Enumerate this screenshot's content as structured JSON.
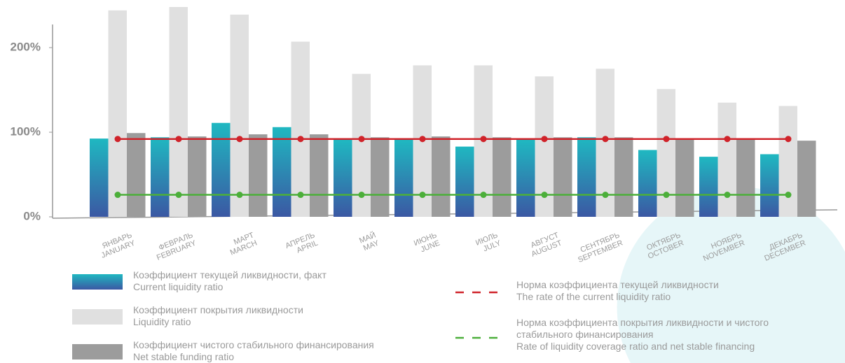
{
  "chart_data": {
    "type": "bar",
    "categories": [
      "JANUARY",
      "FEBRUARY",
      "MARCH",
      "APRIL",
      "MAY",
      "JUNE",
      "JULY",
      "AUGUST",
      "SEPTEMBER",
      "OCTOBER",
      "NOVEMBER",
      "DECEMBER"
    ],
    "categories_ru": [
      "ЯНВАРЬ",
      "ФЕВРАЛЬ",
      "МАРТ",
      "АПРЕЛЬ",
      "МАЙ",
      "ИЮНЬ",
      "ИЮЛЬ",
      "АВГУСТ",
      "СЕНТЯБРЬ",
      "ОКТЯБРЬ",
      "НОЯБРЬ",
      "ДЕКАБРЬ"
    ],
    "ylim": [
      0,
      248
    ],
    "yticks": [
      {
        "value": 0,
        "label": "0%"
      },
      {
        "value": 100,
        "label": "100%"
      },
      {
        "value": 200,
        "label": "200%"
      }
    ],
    "series": [
      {
        "name": "Коэффициент текущей ликвидности, факт",
        "name_en": "Current liquidity ratio",
        "type": "bar",
        "color": "#1fb3c0",
        "values": [
          92.5,
          94,
          111,
          106,
          91,
          91,
          83,
          91,
          94,
          79,
          71,
          74
        ]
      },
      {
        "name": "Коэффициент покрытия ликвидности",
        "name_en": "Liquidity ratio",
        "type": "bar",
        "color": "#e0e0e0",
        "values": [
          244,
          248,
          239,
          207,
          169,
          179,
          179,
          166,
          175,
          151,
          135,
          131
        ]
      },
      {
        "name": "Коэффициент чистого стабильного финансирования",
        "name_en": "Net stable funding ratio",
        "type": "bar",
        "color": "#9c9c9c",
        "values": [
          99,
          95,
          97.5,
          97.5,
          94,
          95,
          94,
          94,
          94,
          91,
          91,
          90
        ]
      },
      {
        "name": "Норма коэффициента текущей ликвидности",
        "name_en": "The rate of the current liquidity ratio",
        "type": "line",
        "color": "#d0232a",
        "values": [
          92,
          92,
          92,
          92,
          92,
          92,
          92,
          92,
          92,
          92,
          92,
          92
        ]
      },
      {
        "name": "Норма коэффициента покрытия ликвидности и чистого стабильного финансирования",
        "name_en": "Rate of liquidity coverage ratio and net stable financing",
        "type": "line",
        "color": "#4caf3a",
        "values": [
          26,
          26,
          26,
          26,
          26,
          26,
          26,
          26,
          26,
          26,
          26,
          26
        ]
      }
    ]
  }
}
